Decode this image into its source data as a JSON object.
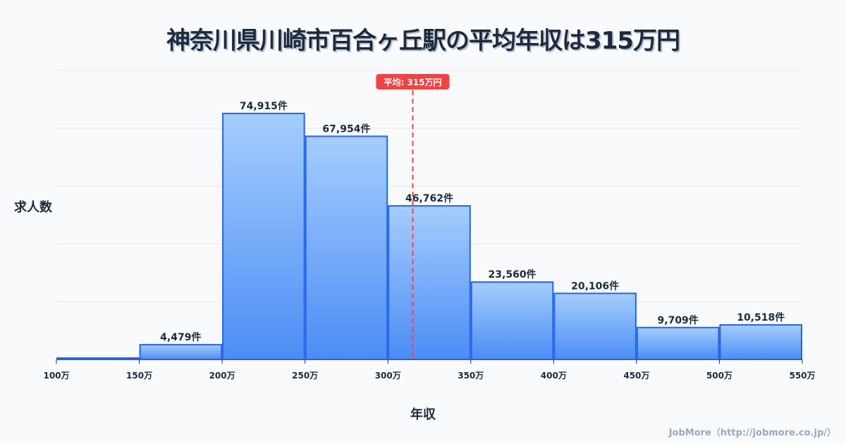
{
  "chart_data": {
    "type": "bar",
    "title": "神奈川県川崎市百合ヶ丘駅の平均年収は315万円",
    "xlabel": "年収",
    "ylabel": "求人数",
    "x_ticks": [
      "100万",
      "150万",
      "200万",
      "250万",
      "300万",
      "350万",
      "400万",
      "450万",
      "500万",
      "550万"
    ],
    "bins": [
      [
        100,
        150
      ],
      [
        150,
        200
      ],
      [
        200,
        250
      ],
      [
        250,
        300
      ],
      [
        300,
        350
      ],
      [
        350,
        400
      ],
      [
        400,
        450
      ],
      [
        450,
        500
      ],
      [
        500,
        550
      ]
    ],
    "values": [
      0,
      4479,
      74915,
      67954,
      46762,
      23560,
      20106,
      9709,
      10518
    ],
    "data_labels": [
      "",
      "4,479件",
      "74,915件",
      "67,954件",
      "46,762件",
      "23,560件",
      "20,106件",
      "9,709件",
      "10,518件"
    ],
    "xlim": [
      100,
      550
    ],
    "ylim": [
      0,
      88000
    ],
    "grid": true,
    "mean": {
      "value": 315,
      "label": "平均: 315万円",
      "color": "#ef4444"
    },
    "bar_color_top": "#a5cdfc",
    "bar_color_bottom": "#4b8df5",
    "bar_stroke": "#2563eb"
  },
  "credit": "JobMore（http://jobmore.co.jp/）"
}
